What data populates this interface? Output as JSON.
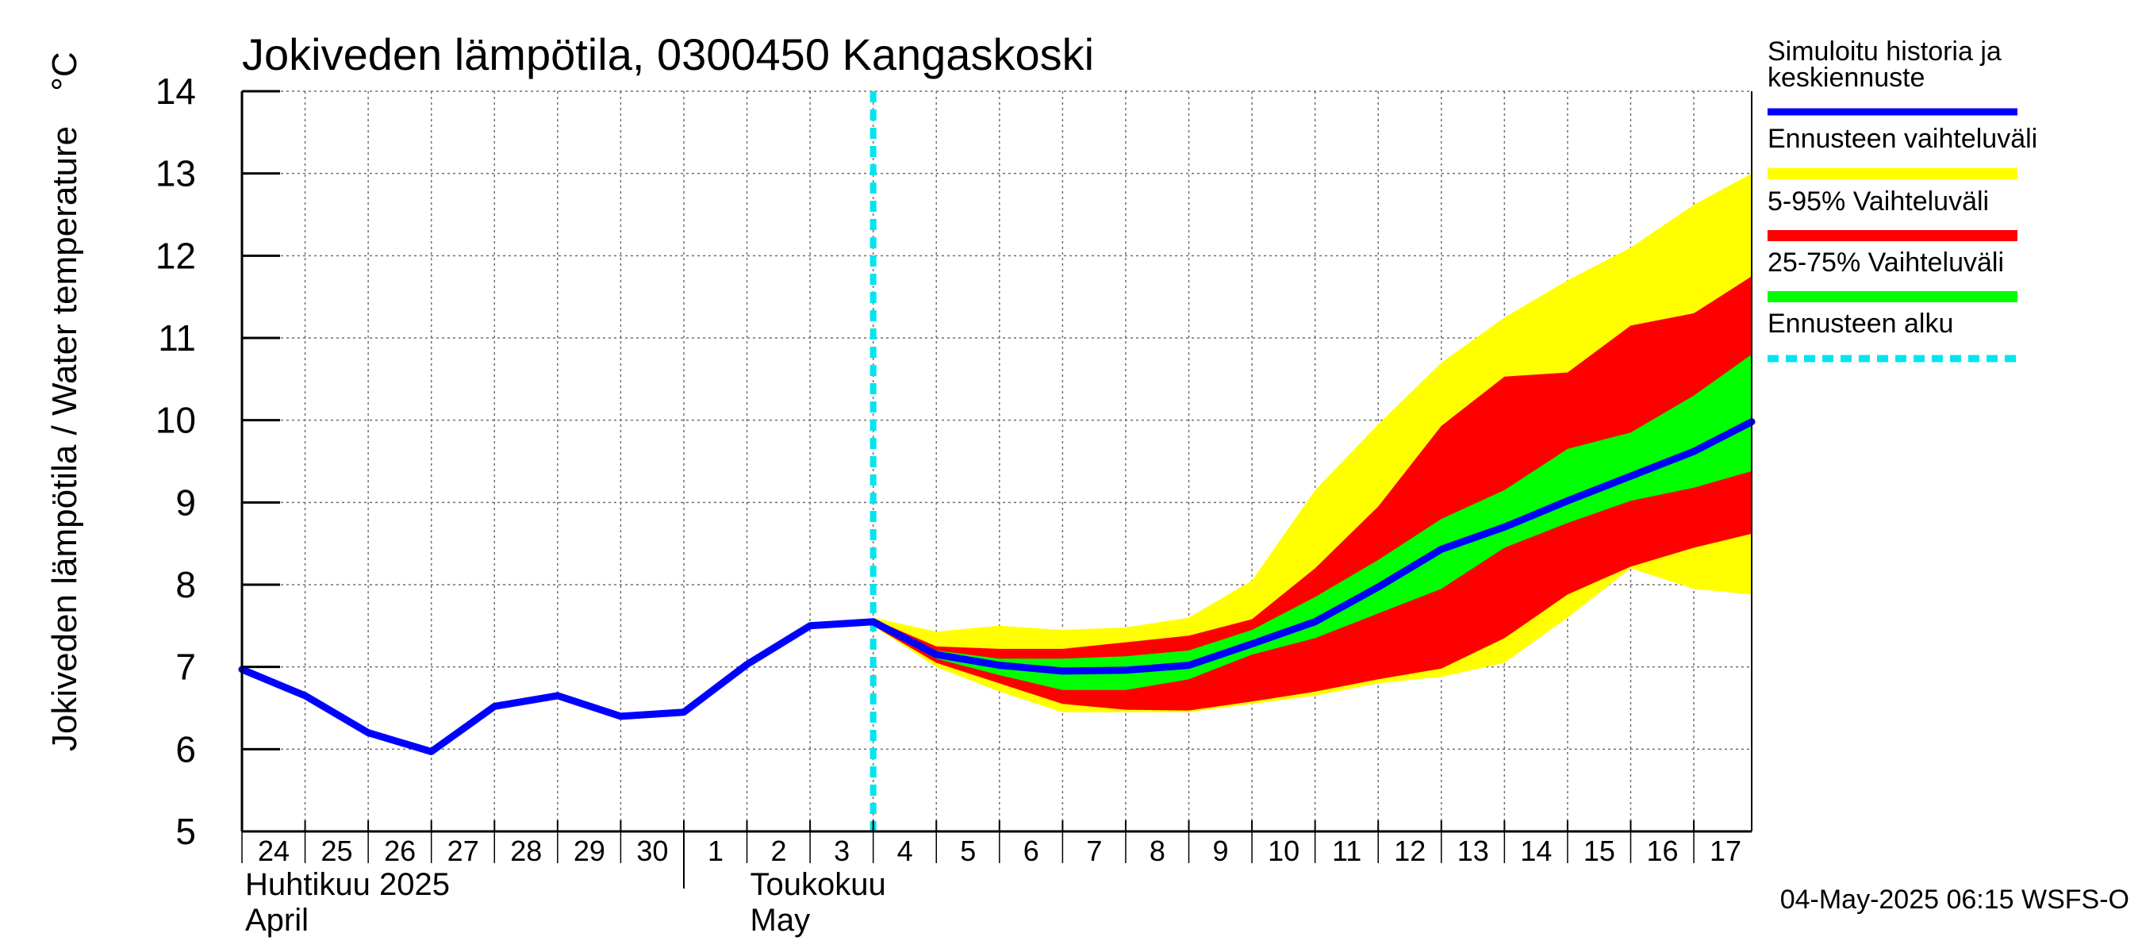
{
  "chart_data": {
    "type": "area",
    "title": "Jokiveden lämpötila, 0300450 Kangaskoski",
    "ylabel": "Jokiveden lämpötila / Water temperature",
    "yunit": "°C",
    "ylim": [
      5,
      14
    ],
    "yticks": [
      "5",
      "6",
      "7",
      "8",
      "9",
      "10",
      "11",
      "12",
      "13",
      "14"
    ],
    "xlim": [
      "2025-04-24",
      "2025-05-17 22:00"
    ],
    "x_tick_labels": [
      {
        "date": "2025-04-24",
        "label": "24"
      },
      {
        "date": "2025-04-25",
        "label": "25"
      },
      {
        "date": "2025-04-26",
        "label": "26"
      },
      {
        "date": "2025-04-27",
        "label": "27"
      },
      {
        "date": "2025-04-28",
        "label": "28"
      },
      {
        "date": "2025-04-29",
        "label": "29"
      },
      {
        "date": "2025-04-30",
        "label": "30"
      },
      {
        "date": "2025-05-01",
        "label": "1"
      },
      {
        "date": "2025-05-02",
        "label": "2"
      },
      {
        "date": "2025-05-03",
        "label": "3"
      },
      {
        "date": "2025-05-04",
        "label": "4"
      },
      {
        "date": "2025-05-05",
        "label": "5"
      },
      {
        "date": "2025-05-06",
        "label": "6"
      },
      {
        "date": "2025-05-07",
        "label": "7"
      },
      {
        "date": "2025-05-08",
        "label": "8"
      },
      {
        "date": "2025-05-09",
        "label": "9"
      },
      {
        "date": "2025-05-10",
        "label": "10"
      },
      {
        "date": "2025-05-11",
        "label": "11"
      },
      {
        "date": "2025-05-12",
        "label": "12"
      },
      {
        "date": "2025-05-13",
        "label": "13"
      },
      {
        "date": "2025-05-14",
        "label": "14"
      },
      {
        "date": "2025-05-15",
        "label": "15"
      },
      {
        "date": "2025-05-16",
        "label": "16"
      },
      {
        "date": "2025-05-17",
        "label": "17"
      }
    ],
    "month_labels": [
      {
        "date": "2025-04-24",
        "fi": "Huhtikuu  2025",
        "en": "April"
      },
      {
        "date": "2025-05-02",
        "fi": "Toukokuu",
        "en": "May"
      }
    ],
    "month_separator": "2025-05-01",
    "forecast_start": "2025-05-04",
    "grid": true,
    "legend_position": "right",
    "series": [
      {
        "name": "Simuloitu historia ja keskiennuste",
        "kind": "line",
        "color": "#0000ff",
        "x": [
          "2025-04-24",
          "2025-04-25",
          "2025-04-26",
          "2025-04-27",
          "2025-04-28",
          "2025-04-29",
          "2025-04-30",
          "2025-05-01",
          "2025-05-02",
          "2025-05-03",
          "2025-05-04",
          "2025-05-05",
          "2025-05-06",
          "2025-05-07",
          "2025-05-08",
          "2025-05-09",
          "2025-05-10",
          "2025-05-11",
          "2025-05-12",
          "2025-05-13",
          "2025-05-14",
          "2025-05-15",
          "2025-05-16",
          "2025-05-17",
          "2025-05-17 22:00"
        ],
        "y": [
          6.97,
          6.65,
          6.2,
          5.97,
          6.52,
          6.65,
          6.4,
          6.45,
          7.03,
          7.5,
          7.55,
          7.15,
          7.02,
          6.95,
          6.96,
          7.02,
          7.28,
          7.55,
          7.97,
          8.43,
          8.7,
          9.02,
          9.32,
          9.62,
          9.98
        ]
      },
      {
        "name": "Ennusteen vaihteluväli",
        "kind": "band",
        "color": "#ffff00",
        "x": [
          "2025-05-04",
          "2025-05-05",
          "2025-05-06",
          "2025-05-07",
          "2025-05-08",
          "2025-05-09",
          "2025-05-10",
          "2025-05-11",
          "2025-05-12",
          "2025-05-13",
          "2025-05-14",
          "2025-05-15",
          "2025-05-16",
          "2025-05-17",
          "2025-05-17 22:00"
        ],
        "low": [
          7.5,
          7.0,
          6.7,
          6.45,
          6.45,
          6.45,
          6.55,
          6.65,
          6.8,
          6.88,
          7.05,
          7.6,
          8.2,
          7.95,
          7.88
        ],
        "high": [
          7.6,
          7.43,
          7.5,
          7.45,
          7.48,
          7.6,
          8.05,
          9.15,
          9.95,
          10.7,
          11.25,
          11.7,
          12.1,
          12.62,
          13.0
        ]
      },
      {
        "name": "5-95% Vaihteluväli",
        "kind": "band",
        "color": "#ff0000",
        "x": [
          "2025-05-04",
          "2025-05-05",
          "2025-05-06",
          "2025-05-07",
          "2025-05-08",
          "2025-05-09",
          "2025-05-10",
          "2025-05-11",
          "2025-05-12",
          "2025-05-13",
          "2025-05-14",
          "2025-05-15",
          "2025-05-16",
          "2025-05-17",
          "2025-05-17 22:00"
        ],
        "low": [
          7.5,
          7.05,
          6.8,
          6.55,
          6.48,
          6.47,
          6.58,
          6.7,
          6.85,
          6.98,
          7.35,
          7.88,
          8.22,
          8.45,
          8.62
        ],
        "high": [
          7.58,
          7.25,
          7.22,
          7.22,
          7.3,
          7.38,
          7.58,
          8.2,
          8.95,
          9.93,
          10.53,
          10.58,
          11.15,
          11.3,
          11.75
        ]
      },
      {
        "name": "25-75% Vaihteluväli",
        "kind": "band",
        "color": "#00ff00",
        "x": [
          "2025-05-04",
          "2025-05-05",
          "2025-05-06",
          "2025-05-07",
          "2025-05-08",
          "2025-05-09",
          "2025-05-10",
          "2025-05-11",
          "2025-05-12",
          "2025-05-13",
          "2025-05-14",
          "2025-05-15",
          "2025-05-16",
          "2025-05-17",
          "2025-05-17 22:00"
        ],
        "low": [
          7.52,
          7.1,
          6.9,
          6.72,
          6.72,
          6.85,
          7.15,
          7.35,
          7.65,
          7.95,
          8.45,
          8.75,
          9.02,
          9.18,
          9.38
        ],
        "high": [
          7.56,
          7.2,
          7.1,
          7.1,
          7.13,
          7.2,
          7.45,
          7.85,
          8.3,
          8.8,
          9.15,
          9.65,
          9.85,
          10.3,
          10.8
        ]
      },
      {
        "name": "Ennusteen alku",
        "kind": "vline",
        "color": "#00e5ee",
        "x": "2025-05-04"
      }
    ],
    "footer": "04-May-2025 06:15 WSFS-O"
  }
}
